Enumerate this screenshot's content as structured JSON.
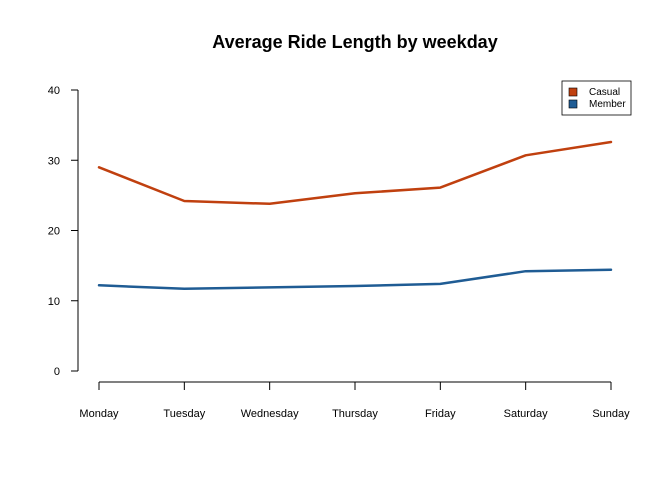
{
  "chart_data": {
    "type": "line",
    "title": "Average Ride Length by weekday",
    "xlabel": "",
    "ylabel": "",
    "categories": [
      "Monday",
      "Tuesday",
      "Wednesday",
      "Thursday",
      "Friday",
      "Saturday",
      "Sunday"
    ],
    "ylim": [
      0,
      40
    ],
    "yticks": [
      0,
      10,
      20,
      30,
      40
    ],
    "grid": false,
    "legend_position": "top-right",
    "series": [
      {
        "name": "Casual",
        "color": "#C0400F",
        "values": [
          29.0,
          24.2,
          23.8,
          25.3,
          26.1,
          30.7,
          32.6
        ]
      },
      {
        "name": "Member",
        "color": "#1F5C94",
        "values": [
          12.2,
          11.7,
          11.9,
          12.1,
          12.4,
          14.2,
          14.4
        ]
      }
    ]
  }
}
